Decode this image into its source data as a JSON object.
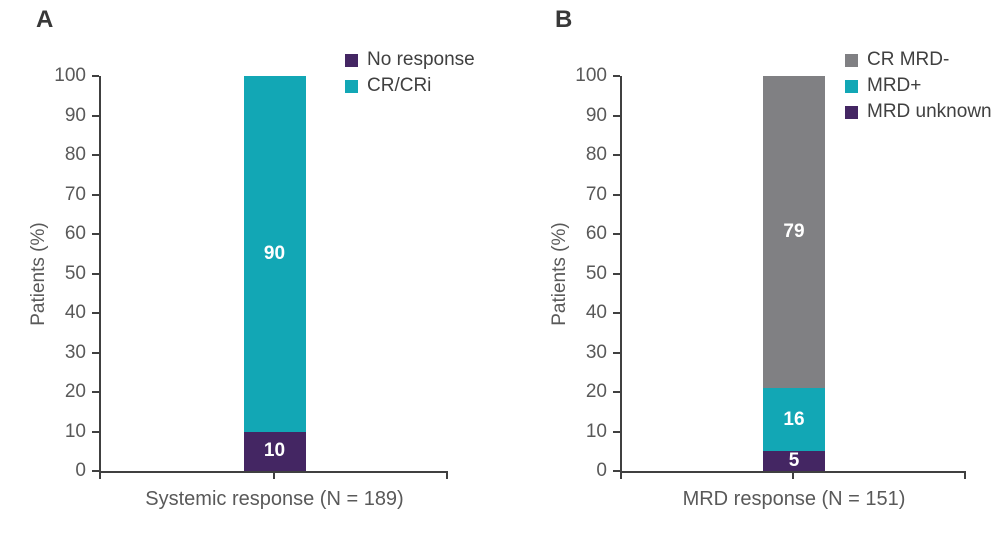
{
  "figure": {
    "background": "#ffffff",
    "axis_color": "#404040",
    "tick_label_color": "#595959",
    "legend_text_color": "#404040",
    "bar_value_text_color": "#ffffff"
  },
  "chart_data": [
    {
      "type": "bar",
      "stacked": true,
      "panel_label": "A",
      "categories": [
        "Systemic response (N = 189)"
      ],
      "series": [
        {
          "name": "No response",
          "values": [
            10
          ],
          "color": "#442663"
        },
        {
          "name": "CR/CRi",
          "values": [
            90
          ],
          "color": "#12a7b5"
        }
      ],
      "legend": [
        {
          "label": "No response",
          "color": "#442663"
        },
        {
          "label": "CR/CRi",
          "color": "#12a7b5"
        }
      ],
      "bar_value_labels": [
        "10",
        "90"
      ],
      "xlabel": "Systemic response (N = 189)",
      "ylabel": "Patients (%)",
      "ylim": [
        0,
        100
      ],
      "yticks": [
        0,
        10,
        20,
        30,
        40,
        50,
        60,
        70,
        80,
        90,
        100
      ],
      "grid": false,
      "legend_position": "top-right"
    },
    {
      "type": "bar",
      "stacked": true,
      "panel_label": "B",
      "categories": [
        "MRD response (N = 151)"
      ],
      "series": [
        {
          "name": "MRD unknown",
          "values": [
            5
          ],
          "color": "#442663"
        },
        {
          "name": "MRD+",
          "values": [
            16
          ],
          "color": "#12a7b5"
        },
        {
          "name": "CR MRD-",
          "values": [
            79
          ],
          "color": "#808083"
        }
      ],
      "legend": [
        {
          "label": "CR MRD-",
          "color": "#808083"
        },
        {
          "label": "MRD+",
          "color": "#12a7b5"
        },
        {
          "label": "MRD unknown",
          "color": "#442663"
        }
      ],
      "bar_value_labels": [
        "5",
        "16",
        "79"
      ],
      "xlabel": "MRD response (N = 151)",
      "ylabel": "Patients (%)",
      "ylim": [
        0,
        100
      ],
      "yticks": [
        0,
        10,
        20,
        30,
        40,
        50,
        60,
        70,
        80,
        90,
        100
      ],
      "grid": false,
      "legend_position": "top-right"
    }
  ]
}
